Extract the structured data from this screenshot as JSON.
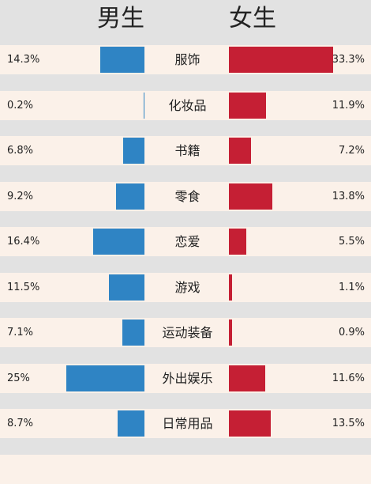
{
  "header": {
    "male": "男生",
    "female": "女生"
  },
  "colors": {
    "male": "#2f84c4",
    "female": "#c51f34",
    "row_bg": "#fbf1e9",
    "page_bg": "#e2e2e2"
  },
  "chart_data": {
    "type": "bar",
    "categories": [
      "服饰",
      "化妆品",
      "书籍",
      "零食",
      "恋爱",
      "游戏",
      "运动装备",
      "外出娱乐",
      "日常用品",
      ""
    ],
    "series": [
      {
        "name": "男生",
        "values": [
          14.3,
          0.2,
          6.8,
          9.2,
          16.4,
          11.5,
          7.1,
          25,
          8.7,
          null
        ]
      },
      {
        "name": "女生",
        "values": [
          33.3,
          11.9,
          7.2,
          13.8,
          5.5,
          1.1,
          0.9,
          11.6,
          13.5,
          null
        ]
      }
    ],
    "labels_male": [
      "14.3%",
      "0.2%",
      "6.8%",
      "9.2%",
      "16.4%",
      "11.5%",
      "7.1%",
      "25%",
      "8.7%",
      ""
    ],
    "labels_female": [
      "33.3%",
      "11.9%",
      "7.2%",
      "13.8%",
      "5.5%",
      "1.1%",
      "0.9%",
      "11.6%",
      "13.5%",
      ""
    ]
  }
}
